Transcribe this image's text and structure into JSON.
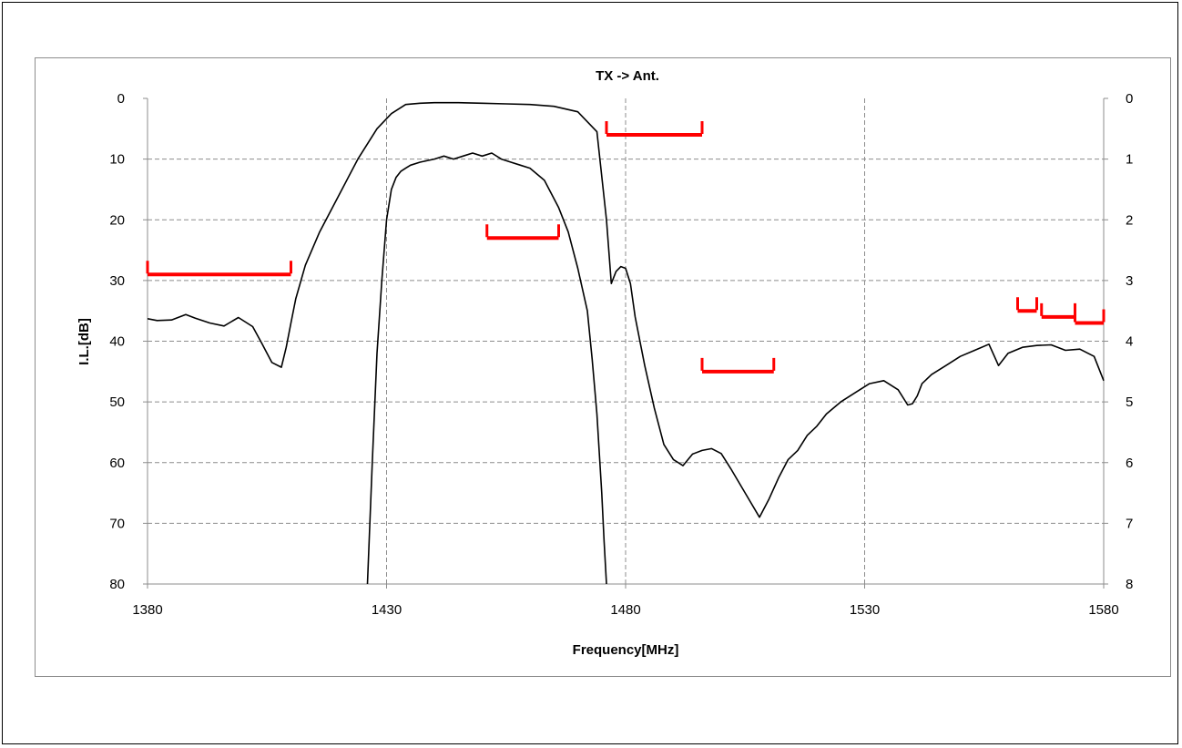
{
  "chart_data": {
    "type": "line",
    "title": "TX -> Ant.",
    "xlabel": "Frequency[MHz]",
    "ylabel": "I.L.[dB]",
    "xlim": [
      1380,
      1580
    ],
    "ylim": [
      0,
      80
    ],
    "ylim_right": [
      0,
      8
    ],
    "x_ticks": [
      "1380",
      "1430",
      "1480",
      "1530",
      "1580"
    ],
    "y_ticks": [
      "0",
      "10",
      "20",
      "30",
      "40",
      "50",
      "60",
      "70",
      "80"
    ],
    "y_ticks_right": [
      "0",
      "1",
      "2",
      "3",
      "4",
      "5",
      "6",
      "7",
      "8"
    ],
    "y_inverted": true,
    "grid": true,
    "legend": "none",
    "series": [
      {
        "axis": "left",
        "color": "#000000",
        "x": [
          1380,
          1382,
          1385,
          1388,
          1390,
          1393,
          1396,
          1399,
          1402,
          1404,
          1406,
          1408,
          1409,
          1410,
          1411,
          1413,
          1416,
          1420,
          1424,
          1428,
          1431,
          1434,
          1437,
          1440,
          1445,
          1450,
          1455,
          1460,
          1465,
          1470,
          1474,
          1476,
          1477,
          1478,
          1479,
          1480,
          1481,
          1482,
          1484,
          1486,
          1488,
          1490,
          1492,
          1494,
          1496,
          1498,
          1500,
          1502,
          1505,
          1508,
          1510,
          1512,
          1514,
          1516,
          1518,
          1520,
          1522,
          1525,
          1528,
          1531,
          1534,
          1537,
          1539,
          1540,
          1541,
          1542,
          1544,
          1547,
          1550,
          1553,
          1556,
          1558,
          1560,
          1563,
          1566,
          1569,
          1572,
          1575,
          1578,
          1580
        ],
        "y": [
          36.3,
          36.6,
          36.5,
          35.6,
          36.2,
          37.0,
          37.5,
          36.1,
          37.6,
          40.5,
          43.5,
          44.3,
          41.0,
          37.0,
          33.0,
          27.5,
          22.0,
          16.0,
          10.0,
          5.0,
          2.5,
          1.0,
          0.8,
          0.7,
          0.7,
          0.8,
          0.9,
          1.0,
          1.3,
          2.2,
          5.5,
          20.0,
          30.5,
          28.5,
          27.7,
          28.0,
          30.5,
          36.0,
          44.0,
          51.0,
          57.0,
          59.5,
          60.5,
          58.6,
          58.0,
          57.7,
          58.5,
          61.0,
          65.0,
          69.0,
          66.0,
          62.5,
          59.5,
          58.0,
          55.5,
          54.0,
          52.0,
          50.0,
          48.5,
          47.0,
          46.5,
          48.0,
          50.5,
          50.3,
          49.0,
          47.0,
          45.5,
          44.0,
          42.5,
          41.5,
          40.5,
          44.0,
          42.0,
          41.0,
          40.7,
          40.6,
          41.5,
          41.3,
          42.5,
          46.5
        ]
      },
      {
        "axis": "right",
        "color": "#000000",
        "x": [
          1426.0,
          1427.0,
          1428.0,
          1429.0,
          1430.0,
          1431.0,
          1432.0,
          1433.0,
          1434.0,
          1435.0,
          1437.0,
          1440.0,
          1442.0,
          1444.0,
          1446.0,
          1448.0,
          1450.0,
          1452.0,
          1454.0,
          1456.0,
          1458.0,
          1460.0,
          1463.0,
          1466.0,
          1468.0,
          1470.0,
          1472.0,
          1473.0,
          1474.0,
          1475.0,
          1475.5,
          1476.0
        ],
        "y": [
          8.0,
          6.0,
          4.2,
          3.0,
          2.0,
          1.5,
          1.3,
          1.2,
          1.15,
          1.1,
          1.05,
          1.0,
          0.95,
          1.0,
          0.95,
          0.9,
          0.95,
          0.9,
          1.0,
          1.05,
          1.1,
          1.15,
          1.35,
          1.8,
          2.2,
          2.8,
          3.5,
          4.3,
          5.2,
          6.5,
          7.3,
          8.0
        ]
      }
    ],
    "spec_masks": [
      {
        "color": "#ff0000",
        "x": [
          1380,
          1410
        ],
        "y": 29
      },
      {
        "color": "#ff0000",
        "x": [
          1451,
          1466
        ],
        "y": 23
      },
      {
        "color": "#ff0000",
        "x": [
          1476,
          1496
        ],
        "y": 6
      },
      {
        "color": "#ff0000",
        "x": [
          1496,
          1511
        ],
        "y": 45
      },
      {
        "color": "#ff0000",
        "x": [
          1562,
          1566
        ],
        "y": 35
      },
      {
        "color": "#ff0000",
        "x": [
          1567,
          1574
        ],
        "y": 36
      },
      {
        "color": "#ff0000",
        "x": [
          1574,
          1580
        ],
        "y": 37
      }
    ]
  }
}
